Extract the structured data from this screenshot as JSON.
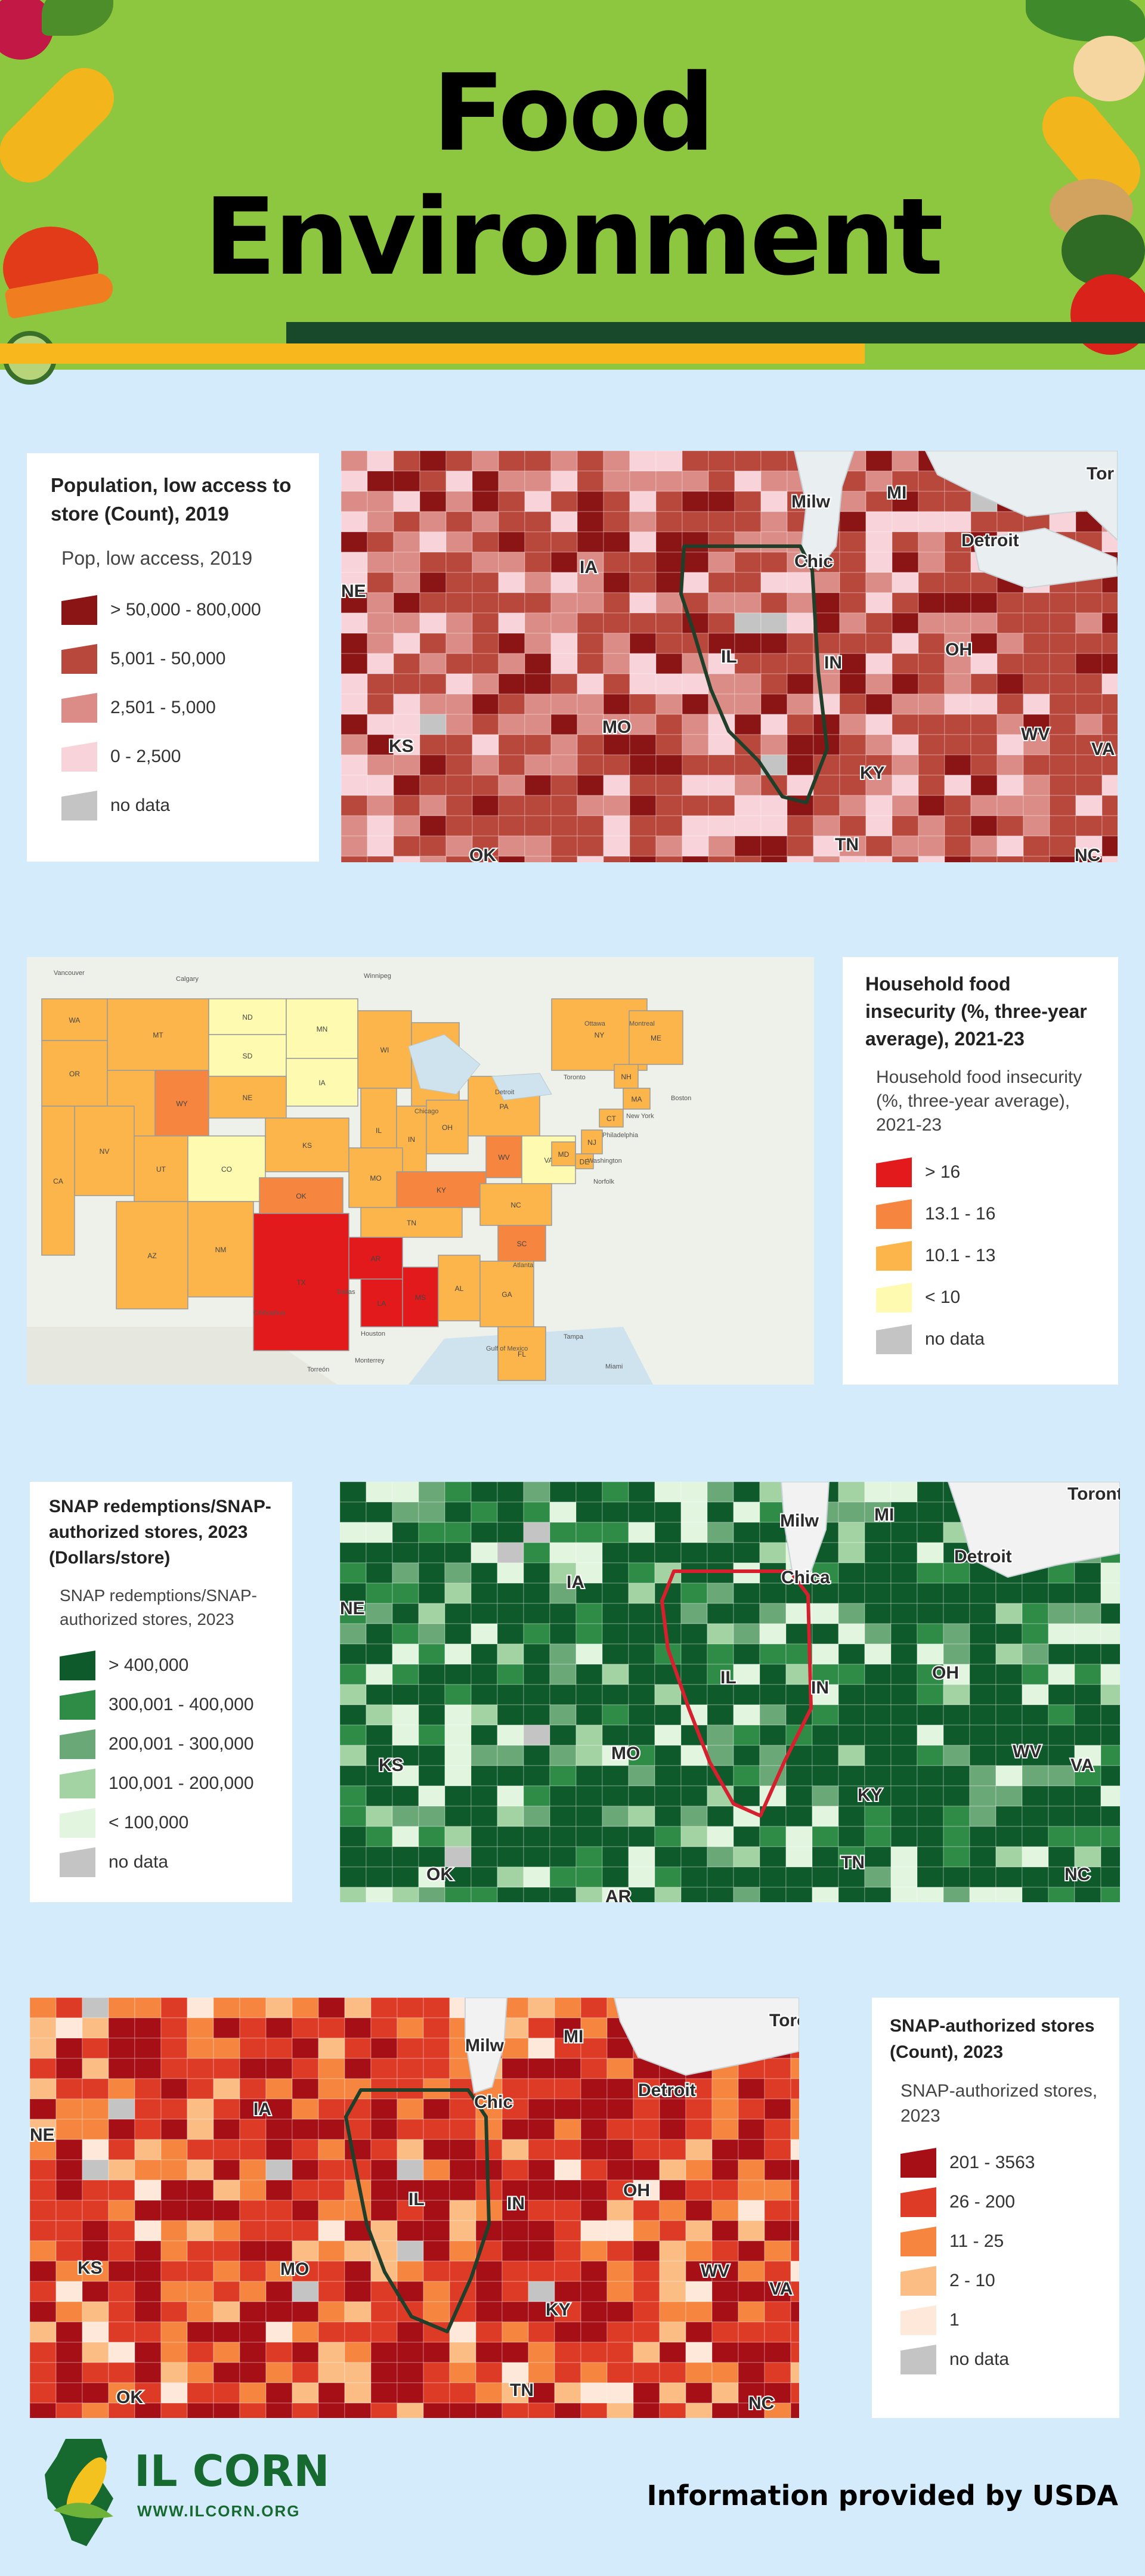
{
  "header": {
    "title_line1": "Food",
    "title_line2": "Environment"
  },
  "panels": [
    {
      "title": "Population, low access to store (Count), 2019",
      "subtitle": "Pop, low access, 2019",
      "legend": [
        {
          "label": "> 50,000 - 800,000",
          "color": "#8b1414"
        },
        {
          "label": "5,001 - 50,000",
          "color": "#b8473c"
        },
        {
          "label": "2,501 - 5,000",
          "color": "#dc8c86"
        },
        {
          "label": "0 - 2,500",
          "color": "#f9d3da"
        },
        {
          "label": "no data",
          "color": "#c4c4c4"
        }
      ],
      "map_labels": [
        "Milw",
        "MI",
        "Tor",
        "NE",
        "IA",
        "Chic",
        "Detroit",
        "IL",
        "IN",
        "OH",
        "KS",
        "MO",
        "KY",
        "WV",
        "VA",
        "OK",
        "TN",
        "NC"
      ],
      "outline_color": "#1f3f2a"
    },
    {
      "title": "Household food insecurity (%, three-year average), 2021-23",
      "subtitle": "Household food insecurity (%, three-year average), 2021-23",
      "legend": [
        {
          "label": "> 16",
          "color": "#e31a1c"
        },
        {
          "label": "13.1 - 16",
          "color": "#f6853f"
        },
        {
          "label": "10.1 - 13",
          "color": "#fbb54b"
        },
        {
          "label": "< 10",
          "color": "#fefab0"
        },
        {
          "label": "no data",
          "color": "#c4c4c4"
        }
      ],
      "map_labels": [
        "WA",
        "MT",
        "ND",
        "MN",
        "OR",
        "ID",
        "SD",
        "WI",
        "MI",
        "WY",
        "IA",
        "NE",
        "NY",
        "NV",
        "UT",
        "CO",
        "IL",
        "IN",
        "OH",
        "PA",
        "CA",
        "KS",
        "MO",
        "KY",
        "WV",
        "VA",
        "AZ",
        "NM",
        "OK",
        "TN",
        "NC",
        "AR",
        "SC",
        "TX",
        "LA",
        "MS",
        "AL",
        "GA",
        "FL",
        "ME",
        "NH",
        "MA",
        "CT",
        "NJ",
        "MD",
        "DE",
        "Ottawa",
        "Montreal",
        "Toronto",
        "Boston",
        "Detroit",
        "Chicago",
        "New York",
        "Philadelphia",
        "Washington",
        "Norfolk",
        "Atlanta",
        "Dallas",
        "Houston",
        "Chihuahua",
        "Monterrey",
        "Torreón",
        "Tampa",
        "Miami",
        "Gulf of Mexico",
        "Vancouver",
        "Winnipeg",
        "Calgary"
      ]
    },
    {
      "title": "SNAP redemptions/SNAP-authorized stores, 2023 (Dollars/store)",
      "subtitle": "SNAP redemptions/SNAP-authorized stores, 2023",
      "legend": [
        {
          "label": "> 400,000",
          "color": "#0f5a2b"
        },
        {
          "label": "300,001 - 400,000",
          "color": "#2e8c47"
        },
        {
          "label": "200,001 - 300,000",
          "color": "#6aa878"
        },
        {
          "label": "100,001 - 200,000",
          "color": "#a3d3a3"
        },
        {
          "label": "< 100,000",
          "color": "#e1f5df"
        },
        {
          "label": "no data",
          "color": "#c4c4c4"
        }
      ],
      "map_labels": [
        "Milw",
        "MI",
        "Toronto",
        "NE",
        "IA",
        "Chica",
        "Detroit",
        "IL",
        "IN",
        "OH",
        "KS",
        "MO",
        "KY",
        "WV",
        "VA",
        "OK",
        "TN",
        "NC",
        "AR"
      ],
      "outline_color": "#d6202e"
    },
    {
      "title": "SNAP-authorized stores (Count), 2023",
      "subtitle": "SNAP-authorized stores, 2023",
      "legend": [
        {
          "label": "201 - 3563",
          "color": "#a50f15"
        },
        {
          "label": "26 - 200",
          "color": "#de3b26"
        },
        {
          "label": "11 - 25",
          "color": "#f6853f"
        },
        {
          "label": "2 - 10",
          "color": "#fbbd84"
        },
        {
          "label": "1",
          "color": "#fde8da"
        },
        {
          "label": "no data",
          "color": "#c4c4c4"
        }
      ],
      "map_labels": [
        "Milw",
        "MI",
        "Toro",
        "NE",
        "IA",
        "Chic",
        "Detroit",
        "IL",
        "IN",
        "OH",
        "KS",
        "MO",
        "KY",
        "WV",
        "VA",
        "OK",
        "TN",
        "NC"
      ],
      "outline_color": "#1f3f2a"
    }
  ],
  "footer": {
    "logo_name": "IL CORN",
    "logo_url": "WWW.ILCORN.ORG",
    "credit": "Information provided by USDA"
  }
}
